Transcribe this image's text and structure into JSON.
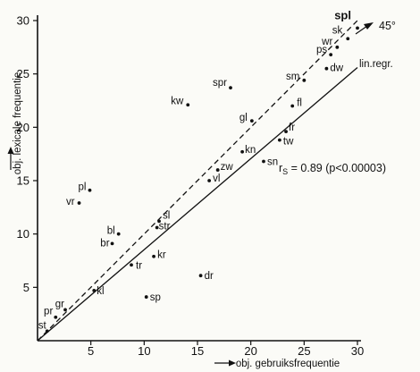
{
  "chart_data": {
    "type": "scatter",
    "xlabel": "obj. gebruiksfrequentie",
    "ylabel": "obj. lexicale frequentie",
    "xlim": [
      0,
      30
    ],
    "ylim": [
      0,
      30
    ],
    "xticks": [
      5,
      10,
      15,
      20,
      25,
      30
    ],
    "yticks": [
      5,
      10,
      15,
      20,
      25,
      30
    ],
    "xtick_labels": [
      "5",
      "10",
      "15",
      "20",
      "25",
      "30"
    ],
    "ytick_labels": [
      "5",
      "10",
      "15",
      "20",
      "25",
      "30"
    ],
    "grid": false,
    "points": [
      {
        "label": "st",
        "x": 0.9,
        "y": 0.9
      },
      {
        "label": "pr",
        "x": 1.7,
        "y": 2.2
      },
      {
        "label": "gr",
        "x": 2.6,
        "y": 2.9
      },
      {
        "label": "kl",
        "x": 5.3,
        "y": 4.7
      },
      {
        "label": "tr",
        "x": 8.8,
        "y": 7.1
      },
      {
        "label": "sp",
        "x": 10.2,
        "y": 4.1
      },
      {
        "label": "kr",
        "x": 10.9,
        "y": 7.9
      },
      {
        "label": "dr",
        "x": 15.3,
        "y": 6.1
      },
      {
        "label": "str",
        "x": 11.2,
        "y": 10.6
      },
      {
        "label": "sl",
        "x": 11.4,
        "y": 11.2
      },
      {
        "label": "br",
        "x": 7.0,
        "y": 9.1
      },
      {
        "label": "bl",
        "x": 7.6,
        "y": 10.0
      },
      {
        "label": "vr",
        "x": 3.9,
        "y": 12.9
      },
      {
        "label": "pl",
        "x": 4.9,
        "y": 14.1
      },
      {
        "label": "vl",
        "x": 16.1,
        "y": 15.0
      },
      {
        "label": "zw",
        "x": 16.9,
        "y": 16.0
      },
      {
        "label": "sn",
        "x": 21.2,
        "y": 16.8
      },
      {
        "label": "kn",
        "x": 19.2,
        "y": 17.7
      },
      {
        "label": "tw",
        "x": 22.7,
        "y": 18.8
      },
      {
        "label": "fr",
        "x": 23.3,
        "y": 19.6
      },
      {
        "label": "gl",
        "x": 20.1,
        "y": 20.6
      },
      {
        "label": "fl",
        "x": 23.9,
        "y": 22.0
      },
      {
        "label": "kw",
        "x": 14.1,
        "y": 22.1
      },
      {
        "label": "spr",
        "x": 18.1,
        "y": 23.7
      },
      {
        "label": "sm",
        "x": 25.0,
        "y": 24.4
      },
      {
        "label": "dw",
        "x": 27.1,
        "y": 25.5
      },
      {
        "label": "ps",
        "x": 27.5,
        "y": 26.8
      },
      {
        "label": "wr",
        "x": 28.1,
        "y": 27.5
      },
      {
        "label": "sk",
        "x": 29.1,
        "y": 28.3
      },
      {
        "label": "spl",
        "x": 30.0,
        "y": 29.3
      }
    ],
    "reference_line": {
      "label": "45°",
      "x": [
        0,
        30
      ],
      "y": [
        0,
        30
      ]
    },
    "regression_line": {
      "label": "lin.regr.",
      "x": [
        0,
        30
      ],
      "y": [
        0,
        25.6
      ]
    },
    "annotation": "r_S = 0.89 (p<0.00003)",
    "annotation_parts": {
      "r": "r",
      "sub": "S",
      "value": " = 0.89 (p<0.00003)"
    }
  }
}
